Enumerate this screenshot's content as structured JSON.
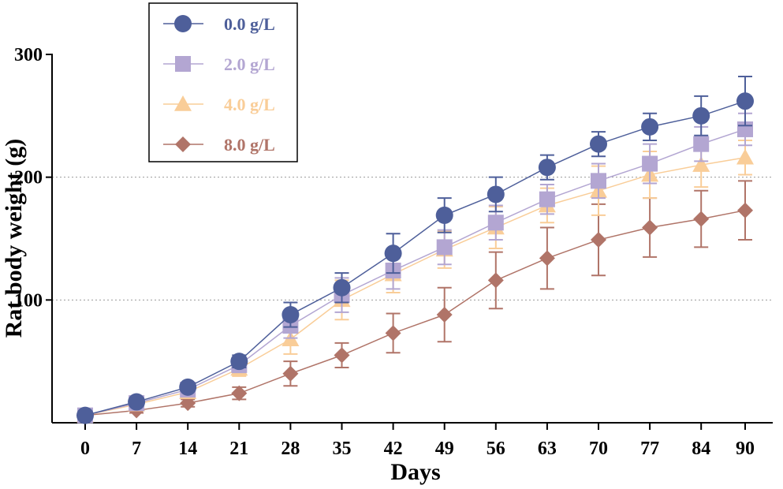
{
  "chart_data": {
    "type": "line",
    "title": "",
    "xlabel": "Days",
    "ylabel": "Rat body weight (g)",
    "x": [
      0,
      7,
      14,
      21,
      28,
      35,
      42,
      49,
      56,
      63,
      70,
      77,
      84,
      90
    ],
    "x_tick_labels": [
      "0",
      "7",
      "14",
      "21",
      "28",
      "35",
      "42",
      "49",
      "56",
      "63",
      "70",
      "77",
      "84",
      "90"
    ],
    "ylim": [
      0,
      300
    ],
    "y_ticks": [
      100,
      200,
      300
    ],
    "y_tick_labels": [
      "100",
      "200",
      "300"
    ],
    "grid": "horizontal dotted at 100 and 200",
    "legend_position": "top-left",
    "series": [
      {
        "name": "0.0 g/L",
        "marker": "circle",
        "color": "#4e5f9a",
        "values": [
          6,
          17,
          29,
          50,
          88,
          110,
          138,
          169,
          186,
          208,
          227,
          241,
          250,
          262
        ],
        "errors": [
          2,
          3,
          3,
          5,
          10,
          12,
          16,
          14,
          14,
          10,
          10,
          11,
          16,
          20
        ]
      },
      {
        "name": "2.0 g/L",
        "marker": "square",
        "color": "#b3a6d2",
        "values": [
          6,
          16,
          27,
          47,
          79,
          104,
          124,
          143,
          163,
          182,
          197,
          211,
          227,
          239
        ],
        "errors": [
          2,
          3,
          4,
          6,
          10,
          14,
          15,
          14,
          14,
          12,
          14,
          16,
          14,
          13
        ]
      },
      {
        "name": "4.0 g/L",
        "marker": "triangle",
        "color": "#f9cd98",
        "values": [
          6,
          15,
          25,
          44,
          68,
          100,
          121,
          141,
          159,
          177,
          189,
          202,
          210,
          216
        ],
        "errors": [
          2,
          3,
          4,
          6,
          12,
          16,
          15,
          15,
          17,
          14,
          20,
          19,
          18,
          14
        ]
      },
      {
        "name": "8.0 g/L",
        "marker": "diamond",
        "color": "#b07468",
        "values": [
          6,
          10,
          16,
          24,
          40,
          55,
          73,
          88,
          116,
          134,
          149,
          159,
          166,
          173
        ],
        "errors": [
          1,
          2,
          3,
          5,
          10,
          10,
          16,
          22,
          23,
          25,
          29,
          24,
          23,
          24
        ]
      }
    ]
  }
}
